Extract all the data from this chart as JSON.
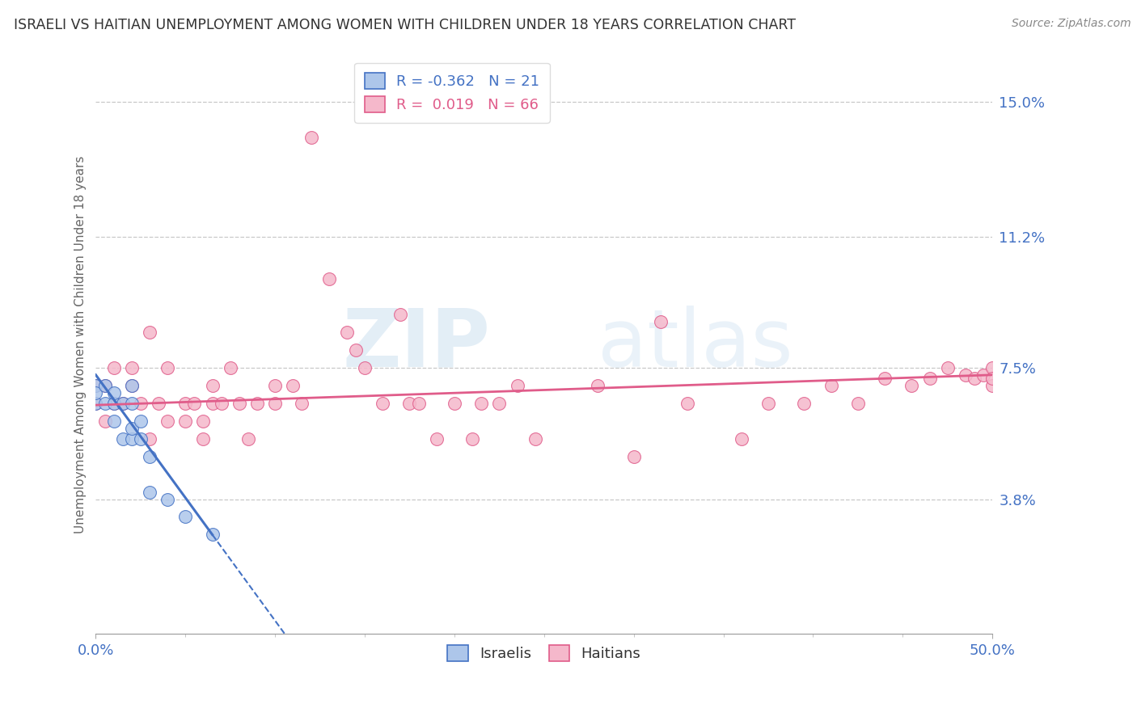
{
  "title": "ISRAELI VS HAITIAN UNEMPLOYMENT AMONG WOMEN WITH CHILDREN UNDER 18 YEARS CORRELATION CHART",
  "source": "Source: ZipAtlas.com",
  "ylabel": "Unemployment Among Women with Children Under 18 years",
  "xlim": [
    0,
    0.5
  ],
  "ylim": [
    0,
    0.163
  ],
  "yticks": [
    0.038,
    0.075,
    0.112,
    0.15
  ],
  "ytick_labels": [
    "3.8%",
    "7.5%",
    "11.2%",
    "15.0%"
  ],
  "xtick_labels": [
    "0.0%",
    "50.0%"
  ],
  "xticks": [
    0.0,
    0.5
  ],
  "israeli_color": "#adc6ea",
  "haitian_color": "#f5b8cb",
  "israeli_line_color": "#4472c4",
  "haitian_line_color": "#e05c8a",
  "legend_R_israeli": "-0.362",
  "legend_N_israeli": "21",
  "legend_R_haitian": "0.019",
  "legend_N_haitian": "66",
  "grid_color": "#c8c8c8",
  "background_color": "#ffffff",
  "title_color": "#333333",
  "tick_label_color": "#4472c4",
  "watermark_zip": "ZIP",
  "watermark_atlas": "atlas",
  "israeli_x": [
    0.0,
    0.0,
    0.0,
    0.005,
    0.005,
    0.01,
    0.01,
    0.01,
    0.015,
    0.015,
    0.02,
    0.02,
    0.02,
    0.02,
    0.025,
    0.025,
    0.03,
    0.03,
    0.04,
    0.05,
    0.065
  ],
  "israeli_y": [
    0.065,
    0.07,
    0.068,
    0.065,
    0.07,
    0.06,
    0.065,
    0.068,
    0.055,
    0.065,
    0.055,
    0.058,
    0.065,
    0.07,
    0.055,
    0.06,
    0.04,
    0.05,
    0.038,
    0.033,
    0.028
  ],
  "haitian_x": [
    0.0,
    0.0,
    0.005,
    0.005,
    0.01,
    0.01,
    0.015,
    0.02,
    0.02,
    0.025,
    0.03,
    0.03,
    0.035,
    0.04,
    0.04,
    0.05,
    0.05,
    0.055,
    0.06,
    0.06,
    0.065,
    0.065,
    0.07,
    0.075,
    0.08,
    0.085,
    0.09,
    0.1,
    0.1,
    0.11,
    0.115,
    0.12,
    0.13,
    0.14,
    0.145,
    0.15,
    0.16,
    0.17,
    0.175,
    0.18,
    0.19,
    0.2,
    0.21,
    0.215,
    0.225,
    0.235,
    0.245,
    0.28,
    0.3,
    0.315,
    0.33,
    0.36,
    0.375,
    0.395,
    0.41,
    0.425,
    0.44,
    0.455,
    0.465,
    0.475,
    0.485,
    0.49,
    0.495,
    0.5,
    0.5,
    0.5
  ],
  "haitian_y": [
    0.065,
    0.07,
    0.06,
    0.07,
    0.065,
    0.075,
    0.065,
    0.07,
    0.075,
    0.065,
    0.055,
    0.085,
    0.065,
    0.06,
    0.075,
    0.06,
    0.065,
    0.065,
    0.055,
    0.06,
    0.065,
    0.07,
    0.065,
    0.075,
    0.065,
    0.055,
    0.065,
    0.065,
    0.07,
    0.07,
    0.065,
    0.14,
    0.1,
    0.085,
    0.08,
    0.075,
    0.065,
    0.09,
    0.065,
    0.065,
    0.055,
    0.065,
    0.055,
    0.065,
    0.065,
    0.07,
    0.055,
    0.07,
    0.05,
    0.088,
    0.065,
    0.055,
    0.065,
    0.065,
    0.07,
    0.065,
    0.072,
    0.07,
    0.072,
    0.075,
    0.073,
    0.072,
    0.073,
    0.075,
    0.07,
    0.072
  ],
  "israeli_trend_x0": 0.0,
  "israeli_trend_y0": 0.073,
  "israeli_trend_x1": 0.065,
  "israeli_trend_y1": 0.028,
  "haitian_trend_x0": 0.0,
  "haitian_trend_y0": 0.0645,
  "haitian_trend_x1": 0.5,
  "haitian_trend_y1": 0.073
}
